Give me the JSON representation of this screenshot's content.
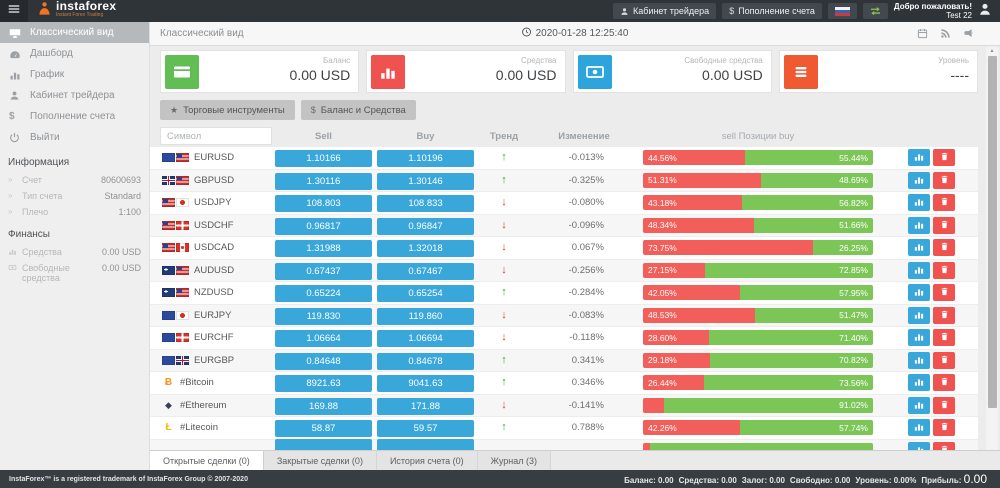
{
  "topbar": {
    "brand": "instaforex",
    "brand_sub": "Instant Forex Trading",
    "trader_cabinet": "Кабинет трейдера",
    "deposit": "Пополнение счета",
    "welcome_line1": "Добро пожаловать!",
    "welcome_line2": "Test 22"
  },
  "sidebar": {
    "menu": [
      {
        "key": "classic-view",
        "label": "Классический вид",
        "icon": "desktop-icon",
        "active": true
      },
      {
        "key": "dashboard",
        "label": "Дашборд",
        "icon": "gauge-icon",
        "active": false
      },
      {
        "key": "chart",
        "label": "График",
        "icon": "bar-chart-icon",
        "active": false
      },
      {
        "key": "trader-cabinet",
        "label": "Кабинет трейдера",
        "icon": "user-icon",
        "active": false
      },
      {
        "key": "deposit",
        "label": "Пополнение счета",
        "icon": "dollar-icon",
        "active": false
      },
      {
        "key": "logout",
        "label": "Выйти",
        "icon": "power-icon",
        "active": false
      }
    ],
    "info_header": "Информация",
    "info": [
      {
        "label": "Счет",
        "value": "80600693"
      },
      {
        "label": "Тип счета",
        "value": "Standard"
      },
      {
        "label": "Плечо",
        "value": "1:100"
      }
    ],
    "finance_header": "Финансы",
    "finance": [
      {
        "label": "Средства",
        "value": "0.00 USD",
        "icon": "mini-chart-icon"
      },
      {
        "label": "Свободные средства",
        "value": "0.00 USD",
        "icon": "mini-cash-icon"
      }
    ]
  },
  "main": {
    "page_title": "Классический вид",
    "timestamp": "2020-01-28 12:25:40",
    "cards": [
      {
        "key": "balance",
        "label": "Баланс",
        "value": "0.00 USD",
        "icon": "credit-card-icon",
        "color": "#61bd54"
      },
      {
        "key": "equity",
        "label": "Средства",
        "value": "0.00 USD",
        "icon": "bar-chart-icon",
        "color": "#f0534f"
      },
      {
        "key": "free-margin",
        "label": "Свободные средства",
        "value": "0.00 USD",
        "icon": "banknote-icon",
        "color": "#2da4dc"
      },
      {
        "key": "level",
        "label": "Уровень",
        "value": "----",
        "icon": "list-icon",
        "color": "#f05a33"
      }
    ],
    "toolbar": [
      {
        "key": "trading-instruments",
        "label": "Торговые инструменты",
        "icon": "star-icon",
        "glyph": "★"
      },
      {
        "key": "balance-and-funds",
        "label": "Баланс и Средства",
        "icon": "dollar-icon",
        "glyph": "$"
      }
    ],
    "table": {
      "search_placeholder": "Символ",
      "headers": {
        "sell": "Sell",
        "buy": "Buy",
        "trend": "Тренд",
        "change": "Изменение",
        "positions": "sell Позиции buy"
      },
      "rows": [
        {
          "symbol": "EURUSD",
          "flags": [
            "eu",
            "us"
          ],
          "sell": "1.10166",
          "buy": "1.10196",
          "trend": "up",
          "change": "-0.013%",
          "sell_pct": 44.56,
          "buy_pct": 55.44,
          "sell_label": "44.56%",
          "buy_label": "55.44%"
        },
        {
          "symbol": "GBPUSD",
          "flags": [
            "gb",
            "us"
          ],
          "sell": "1.30116",
          "buy": "1.30146",
          "trend": "up",
          "change": "-0.325%",
          "sell_pct": 51.31,
          "buy_pct": 48.69,
          "sell_label": "51.31%",
          "buy_label": "48.69%"
        },
        {
          "symbol": "USDJPY",
          "flags": [
            "us",
            "jp"
          ],
          "sell": "108.803",
          "buy": "108.833",
          "trend": "down",
          "change": "-0.080%",
          "sell_pct": 43.18,
          "buy_pct": 56.82,
          "sell_label": "43.18%",
          "buy_label": "56.82%"
        },
        {
          "symbol": "USDCHF",
          "flags": [
            "us",
            "ch"
          ],
          "sell": "0.96817",
          "buy": "0.96847",
          "trend": "down",
          "change": "-0.096%",
          "sell_pct": 48.34,
          "buy_pct": 51.66,
          "sell_label": "48.34%",
          "buy_label": "51.66%"
        },
        {
          "symbol": "USDCAD",
          "flags": [
            "us",
            "ca"
          ],
          "sell": "1.31988",
          "buy": "1.32018",
          "trend": "down",
          "change": "0.067%",
          "sell_pct": 73.75,
          "buy_pct": 26.25,
          "sell_label": "73.75%",
          "buy_label": "26.25%"
        },
        {
          "symbol": "AUDUSD",
          "flags": [
            "au",
            "us"
          ],
          "sell": "0.67437",
          "buy": "0.67467",
          "trend": "down",
          "change": "-0.256%",
          "sell_pct": 27.15,
          "buy_pct": 72.85,
          "sell_label": "27.15%",
          "buy_label": "72.85%"
        },
        {
          "symbol": "NZDUSD",
          "flags": [
            "nz",
            "us"
          ],
          "sell": "0.65224",
          "buy": "0.65254",
          "trend": "up",
          "change": "-0.284%",
          "sell_pct": 42.05,
          "buy_pct": 57.95,
          "sell_label": "42.05%",
          "buy_label": "57.95%"
        },
        {
          "symbol": "EURJPY",
          "flags": [
            "eu",
            "jp"
          ],
          "sell": "119.830",
          "buy": "119.860",
          "trend": "down",
          "change": "-0.083%",
          "sell_pct": 48.53,
          "buy_pct": 51.47,
          "sell_label": "48.53%",
          "buy_label": "51.47%"
        },
        {
          "symbol": "EURCHF",
          "flags": [
            "eu",
            "ch"
          ],
          "sell": "1.06664",
          "buy": "1.06694",
          "trend": "down",
          "change": "-0.118%",
          "sell_pct": 28.6,
          "buy_pct": 71.4,
          "sell_label": "28.60%",
          "buy_label": "71.40%"
        },
        {
          "symbol": "EURGBP",
          "flags": [
            "eu",
            "gb"
          ],
          "sell": "0.84648",
          "buy": "0.84678",
          "trend": "up",
          "change": "0.341%",
          "sell_pct": 29.18,
          "buy_pct": 70.82,
          "sell_label": "29.18%",
          "buy_label": "70.82%"
        },
        {
          "symbol": "#Bitcoin",
          "crypto": "btc",
          "sell": "8921.63",
          "buy": "9041.63",
          "trend": "up",
          "change": "0.346%",
          "sell_pct": 26.44,
          "buy_pct": 73.56,
          "sell_label": "26.44%",
          "buy_label": "73.56%"
        },
        {
          "symbol": "#Ethereum",
          "crypto": "eth",
          "sell": "169.88",
          "buy": "171.88",
          "trend": "down",
          "change": "-0.141%",
          "sell_pct": 8.98,
          "buy_pct": 91.02,
          "sell_label": "",
          "buy_label": "91.02%"
        },
        {
          "symbol": "#Litecoin",
          "crypto": "ltc",
          "sell": "58.87",
          "buy": "59.57",
          "trend": "up",
          "change": "0.788%",
          "sell_pct": 42.26,
          "buy_pct": 57.74,
          "sell_label": "42.26%",
          "buy_label": "57.74%"
        },
        {
          "symbol": "",
          "partial": true,
          "sell": "",
          "buy": "",
          "trend": "",
          "change": "",
          "sell_pct": 3,
          "buy_pct": 97,
          "sell_label": "",
          "buy_label": ""
        }
      ]
    },
    "tabs": [
      {
        "key": "open-trades",
        "label": "Открытые сделки (0)",
        "active": true
      },
      {
        "key": "closed-trades",
        "label": "Закрытые сделки (0)",
        "active": false
      },
      {
        "key": "account-history",
        "label": "История счета (0)",
        "active": false
      },
      {
        "key": "journal",
        "label": "Журнал (3)",
        "active": false
      }
    ]
  },
  "footer": {
    "left": "InstaForex™ is a registered trademark of InstaForex Group © 2007-2020",
    "stats": [
      {
        "label": "Баланс:",
        "value": "0.00",
        "big": false
      },
      {
        "label": "Средства:",
        "value": "0.00",
        "big": false
      },
      {
        "label": "Залог:",
        "value": "0.00",
        "big": false
      },
      {
        "label": "Свободно:",
        "value": "0.00",
        "big": false
      },
      {
        "label": "Уровень:",
        "value": "0.00%",
        "big": false
      },
      {
        "label": "Прибыль:",
        "value": "0.00",
        "big": true
      }
    ]
  },
  "colors": {
    "price_button": "#3aa7db",
    "positions_sell": "#f25f5a",
    "positions_buy": "#7cc658",
    "trend_up": "#3d9e47",
    "trend_down": "#cc4437",
    "topbar_bg": "#2f3439",
    "footer_bg": "#383d42"
  }
}
